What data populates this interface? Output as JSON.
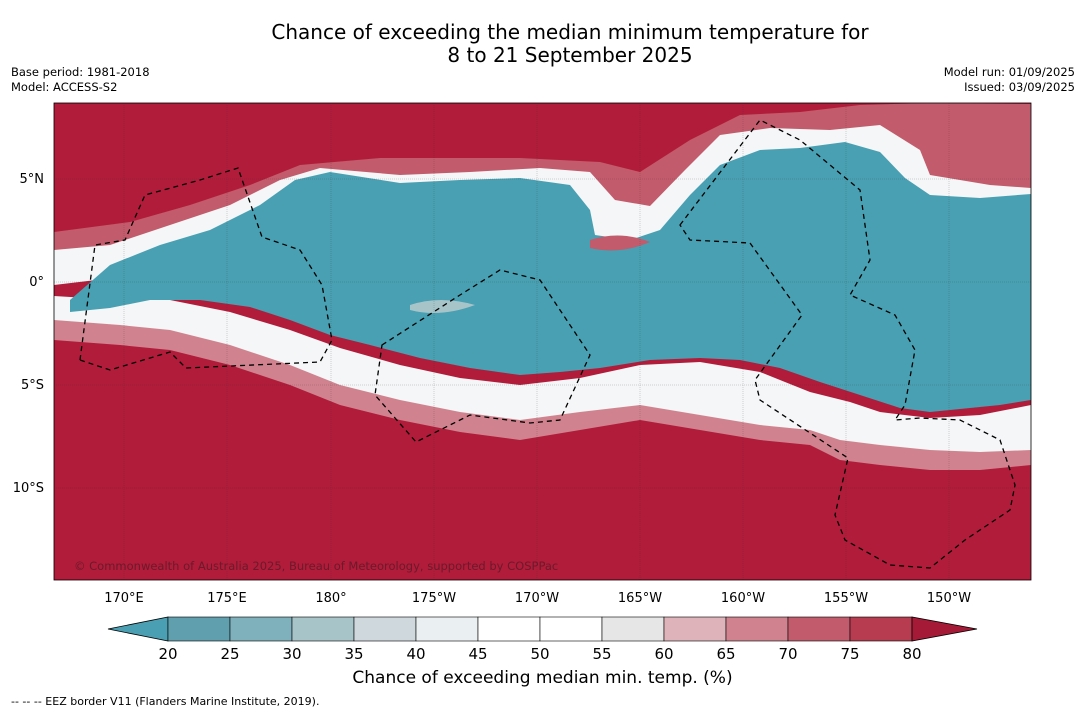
{
  "title_line1": "Chance of exceeding the median minimum temperature for",
  "title_line2": "8 to 21 September 2025",
  "base_period": "Base period: 1981-2018",
  "model": "Model: ACCESS-S2",
  "model_run": "Model run: 01/09/2025",
  "issued": "Issued: 03/09/2025",
  "copyright": "© Commonwealth of Australia 2025, Bureau of Meteorology, supported by COSPPac",
  "lat_labels": [
    "5°N",
    "0°",
    "5°S",
    "10°S"
  ],
  "lon_labels": [
    "170°E",
    "175°E",
    "180°",
    "175°W",
    "170°W",
    "165°W",
    "160°W",
    "155°W",
    "150°W"
  ],
  "colorbar": {
    "ticks": [
      "20",
      "25",
      "30",
      "35",
      "40",
      "45",
      "50",
      "55",
      "60",
      "65",
      "70",
      "75",
      "80"
    ],
    "colors": [
      "#5f9fae",
      "#7fb1bd",
      "#a7c4c9",
      "#cfd8dc",
      "#eaeff1",
      "#ffffff",
      "#ffffff",
      "#e6e6e6",
      "#dfb3ba",
      "#d0838f",
      "#c25b6b",
      "#b73c4f"
    ],
    "under_color": "#4a9fb2",
    "over_color": "#a51a36",
    "title": "Chance of exceeding median min. temp. (%)"
  },
  "colors": {
    "warm": "#b11c3a",
    "cool": "#48a0b2"
  },
  "footnote": "--  --  -- EEZ border V11 (Flanders Marine Institute, 2019)."
}
